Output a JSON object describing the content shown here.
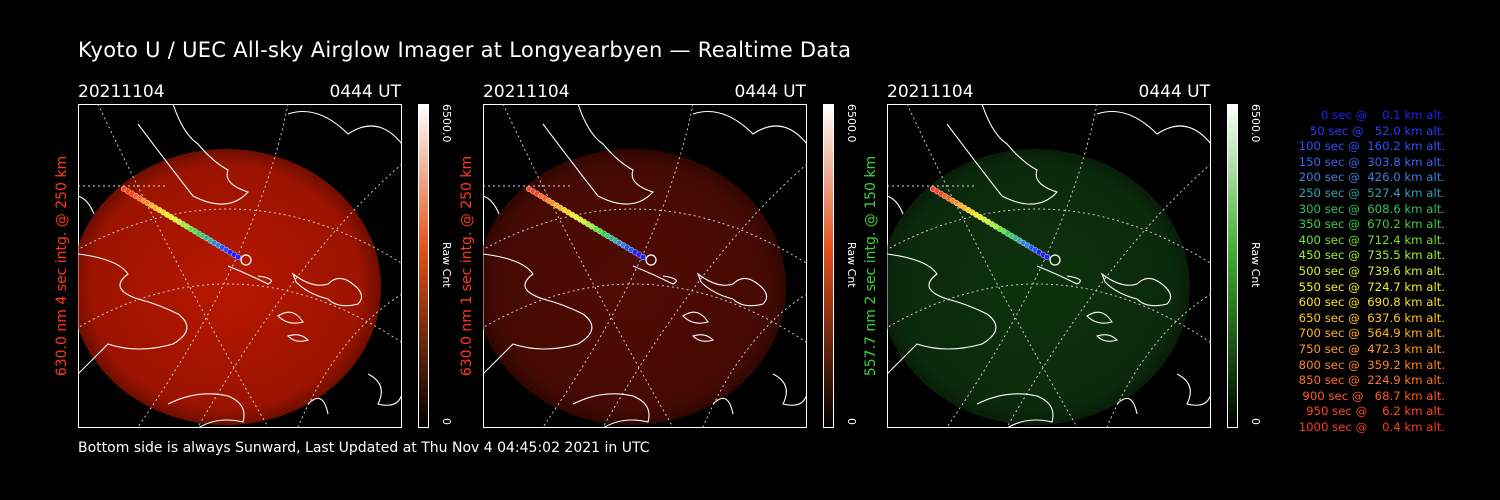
{
  "title": "Kyoto U / UEC All-sky Airglow Imager at Longyearbyen — Realtime Data",
  "footer": "Bottom side is always Sunward, Last Updated at Thu Nov  4 04:45:02 2021 in UTC",
  "panels": [
    {
      "date": "20211104",
      "time": "0444 UT",
      "side_label": "630.0 nm 4 sec intg. @ 250 km",
      "side_color": "#ff3a1a",
      "cbar_max": "6500.0",
      "cbar_label": "Raw Cnt",
      "cbar_min": "0",
      "glow": "#c01800",
      "glow_opacity": 0.95,
      "cbar_top": "#ffffff",
      "cbar_mid": "#e0501a",
      "cbar_bottom": "#000000"
    },
    {
      "date": "20211104",
      "time": "0444 UT",
      "side_label": "630.0 nm 1 sec intg. @ 250 km",
      "side_color": "#ff3a1a",
      "cbar_max": "6500.0",
      "cbar_label": "Raw Cnt",
      "cbar_min": "0",
      "glow": "#5a0c04",
      "glow_opacity": 0.9,
      "cbar_top": "#ffffff",
      "cbar_mid": "#e0501a",
      "cbar_bottom": "#000000"
    },
    {
      "date": "20211104",
      "time": "0444 UT",
      "side_label": "557.7 nm 2 sec intg. @ 150 km",
      "side_color": "#3ad43a",
      "cbar_max": "6500.0",
      "cbar_label": "Raw Cnt",
      "cbar_min": "0",
      "glow": "#0f3a0f",
      "glow_opacity": 0.85,
      "cbar_top": "#ffffff",
      "cbar_mid": "#40b030",
      "cbar_bottom": "#000000"
    }
  ],
  "trajectory_colors": [
    "#ff4020",
    "#ff6020",
    "#ff8a20",
    "#ffb020",
    "#ffd020",
    "#f0f020",
    "#d0f030",
    "#a0f030",
    "#60e040",
    "#30d060",
    "#30b0a0",
    "#3080e0",
    "#2050ff",
    "#2020ff"
  ],
  "legend": [
    {
      "text": "   0 sec @    0.1 km alt.",
      "color": "#2020ff"
    },
    {
      "text": "  50 sec @   52.0 km alt.",
      "color": "#2a3aff"
    },
    {
      "text": " 100 sec @  160.2 km alt.",
      "color": "#3050ff"
    },
    {
      "text": " 150 sec @  303.8 km alt.",
      "color": "#3a66f0"
    },
    {
      "text": " 200 sec @  426.0 km alt.",
      "color": "#3a80e0"
    },
    {
      "text": " 250 sec @  527.4 km alt.",
      "color": "#30a0b0"
    },
    {
      "text": " 300 sec @  608.6 km alt.",
      "color": "#30c060"
    },
    {
      "text": " 350 sec @  670.2 km alt.",
      "color": "#40d040"
    },
    {
      "text": " 400 sec @  712.4 km alt.",
      "color": "#70e030"
    },
    {
      "text": " 450 sec @  735.5 km alt.",
      "color": "#a0f030"
    },
    {
      "text": " 500 sec @  739.6 km alt.",
      "color": "#d0f030"
    },
    {
      "text": " 550 sec @  724.7 km alt.",
      "color": "#f0f020"
    },
    {
      "text": " 600 sec @  690.8 km alt.",
      "color": "#ffe020"
    },
    {
      "text": " 650 sec @  637.6 km alt.",
      "color": "#ffc820"
    },
    {
      "text": " 700 sec @  564.9 km alt.",
      "color": "#ffb020"
    },
    {
      "text": " 750 sec @  472.3 km alt.",
      "color": "#ff9a20"
    },
    {
      "text": " 800 sec @  359.2 km alt.",
      "color": "#ff8420"
    },
    {
      "text": " 850 sec @  224.9 km alt.",
      "color": "#ff7020"
    },
    {
      "text": " 900 sec @   68.7 km alt.",
      "color": "#ff5a20"
    },
    {
      "text": " 950 sec @    6.2 km alt.",
      "color": "#ff4820"
    },
    {
      "text": "1000 sec @    0.4 km alt.",
      "color": "#ff3a1a"
    }
  ]
}
